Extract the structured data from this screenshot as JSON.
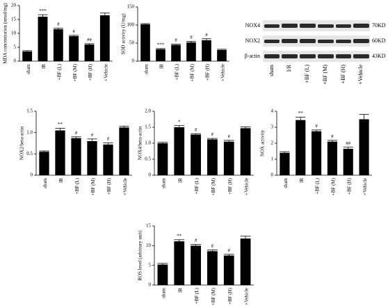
{
  "chart_data": [
    {
      "type": "bar",
      "ylabel": "MDA concentration (nmol/mg)",
      "categories": [
        "sham",
        "IR",
        "+BF (L)",
        "+BF (M)",
        "+BF (H)",
        "+Vehicle"
      ],
      "values": [
        3.5,
        16,
        11.5,
        9,
        6,
        16.5
      ],
      "errors": [
        0.3,
        0.7,
        0.4,
        0.3,
        0.3,
        0.8
      ],
      "annotations": [
        null,
        "***",
        "#",
        "#",
        "##",
        null
      ],
      "color": "#000000",
      "ylim": [
        0,
        20
      ],
      "yticks": [
        0,
        5,
        10,
        15,
        20
      ]
    },
    {
      "type": "bar",
      "ylabel": "SOD activity (U/mg)",
      "categories": [
        "sham",
        "IR",
        "+BF (L)",
        "+BF (M)",
        "+BF (H)",
        "+Vehicle"
      ],
      "values": [
        102,
        33,
        45,
        52,
        58,
        31
      ],
      "errors": [
        2,
        2,
        2,
        3,
        4,
        2
      ],
      "annotations": [
        null,
        "***",
        "#",
        "#",
        "#",
        null
      ],
      "color": "#000000",
      "ylim": [
        0,
        150
      ],
      "yticks": [
        0,
        50,
        100,
        150
      ]
    },
    {
      "type": "bar",
      "ylabel": "NOX2/beta-actin",
      "categories": [
        "sham",
        "IR",
        "+BF (L)",
        "+BF (M)",
        "+BF (H)",
        "+Vehicle"
      ],
      "values": [
        0.55,
        1.05,
        0.87,
        0.8,
        0.72,
        1.12
      ],
      "errors": [
        0.02,
        0.05,
        0.03,
        0.05,
        0.04,
        0.03
      ],
      "annotations": [
        null,
        "**",
        "#",
        "#",
        "#",
        null
      ],
      "color": "#000000",
      "ylim": [
        0,
        1.5
      ],
      "yticks": [
        0,
        0.5,
        {
          "value": 1,
          "label": "1.0"
        },
        1.5
      ]
    },
    {
      "type": "bar",
      "ylabel": "NOX4/beta-actin",
      "categories": [
        "sham",
        "IR",
        "+BF (L)",
        "+BF (M)",
        "+BF (H)",
        "+Vehicle"
      ],
      "values": [
        1.0,
        1.5,
        1.27,
        1.12,
        1.05,
        1.47
      ],
      "errors": [
        0.03,
        0.05,
        0.03,
        0.03,
        0.04,
        0.04
      ],
      "annotations": [
        null,
        "*",
        "#",
        "#",
        "#",
        null
      ],
      "color": "#000000",
      "ylim": [
        0,
        2
      ],
      "yticks": [
        0,
        0.5,
        {
          "value": 1,
          "label": "1.0"
        },
        1.5,
        {
          "value": 2,
          "label": "2.0"
        }
      ]
    },
    {
      "type": "bar",
      "ylabel": "NOX activity",
      "categories": [
        "sham",
        "IR",
        "+BF (L)",
        "+BF (M)",
        "+BF (H)",
        "+Vehicle"
      ],
      "values": [
        1.4,
        3.45,
        2.75,
        2.1,
        1.65,
        3.5
      ],
      "errors": [
        0.07,
        0.18,
        0.08,
        0.08,
        0.1,
        0.3
      ],
      "annotations": [
        null,
        "**",
        "#",
        "#",
        "##",
        null
      ],
      "color": "#000000",
      "ylim": [
        0,
        4
      ],
      "yticks": [
        0,
        1,
        2,
        3,
        4
      ]
    },
    {
      "type": "bar",
      "ylabel": "ROS level (arbitrary unit)",
      "categories": [
        "sham",
        "IR",
        "+BF (L)",
        "+BF (M)",
        "+BF (H)",
        "+Vehicle"
      ],
      "values": [
        5.2,
        11.1,
        10,
        8.6,
        7.5,
        11.8
      ],
      "errors": [
        0.3,
        0.4,
        0.3,
        0.3,
        0.3,
        0.6
      ],
      "annotations": [
        null,
        "**",
        "#",
        "#",
        "#",
        null
      ],
      "color": "#000000",
      "ylim": [
        0,
        15
      ],
      "yticks": [
        0,
        5,
        10,
        15
      ]
    }
  ],
  "blot": {
    "rows": [
      {
        "label": "NOX4",
        "size": "70KD"
      },
      {
        "label": "NOX2",
        "size": "60KD"
      },
      {
        "label": "β-actin",
        "size": "43KD"
      }
    ],
    "lanes": [
      "sham",
      "I/R",
      "+BF (L)",
      "+BF (M)",
      "+BF (H)",
      "+Vehicle"
    ]
  }
}
